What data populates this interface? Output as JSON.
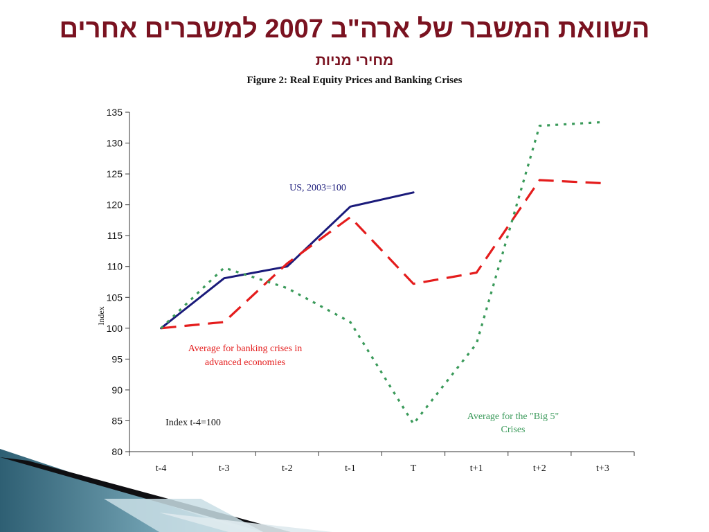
{
  "slide": {
    "title": "השוואת המשבר של ארה\"ב 2007 למשברים אחרים",
    "subtitle": "מחירי מניות",
    "figure_caption": "Figure 2:  Real Equity Prices and Banking Crises"
  },
  "colors": {
    "title": "#7a1220",
    "us": "#1a1a7a",
    "banking": "#e41c1c",
    "big5": "#3a9a5a",
    "axis": "#333333"
  },
  "chart_data": {
    "type": "line",
    "title": "Figure 2:  Real Equity Prices and Banking Crises",
    "xlabel": "",
    "ylabel": "Index",
    "categories": [
      "t-4",
      "t-3",
      "t-2",
      "t-1",
      "T",
      "t+1",
      "t+2",
      "t+3"
    ],
    "ylim": [
      80,
      135
    ],
    "yticks": [
      80,
      85,
      90,
      95,
      100,
      105,
      110,
      115,
      120,
      125,
      130,
      135
    ],
    "grid": false,
    "legend": "none",
    "series": [
      {
        "name": "US, 2003=100",
        "values": [
          100,
          108.1,
          110,
          119.7,
          122,
          null,
          null,
          null
        ],
        "style": "solid",
        "color": "#1a1a7a"
      },
      {
        "name": "Average for banking crises in advanced economies",
        "values": [
          100,
          101,
          110.5,
          118,
          107.2,
          109,
          124,
          123.5
        ],
        "style": "dashed",
        "color": "#e41c1c"
      },
      {
        "name": "Average for the \"Big 5\" Crises",
        "values": [
          100,
          109.8,
          106.5,
          101,
          84.5,
          97.5,
          132.8,
          133.4
        ],
        "style": "dotted",
        "color": "#3a9a5a"
      }
    ],
    "annotations": {
      "us_label": "US, 2003=100",
      "banking_label_line1": "Average for banking crises in",
      "banking_label_line2": "advanced economies",
      "big5_label_line1": "Average for the \"Big 5\"",
      "big5_label_line2": "Crises",
      "index_note": "Index t-4=100"
    }
  }
}
